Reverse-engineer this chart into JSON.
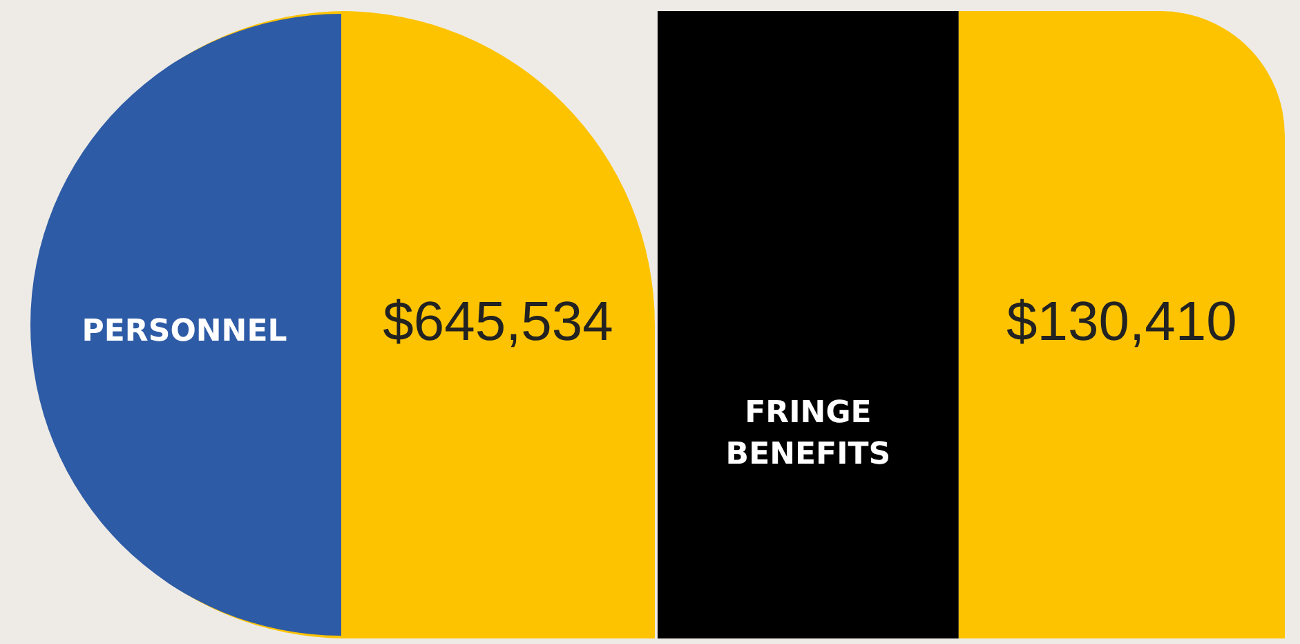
{
  "chart_data": {
    "type": "other",
    "categories": [
      "PERSONNEL",
      "FRINGE BENEFITS"
    ],
    "colors": [
      "#2e5ba6",
      "#000000"
    ],
    "series": [
      {
        "color": "#fdc300",
        "values": [
          645534,
          130410
        ],
        "value_labels": [
          "$645,534",
          "$130,410"
        ]
      }
    ]
  }
}
